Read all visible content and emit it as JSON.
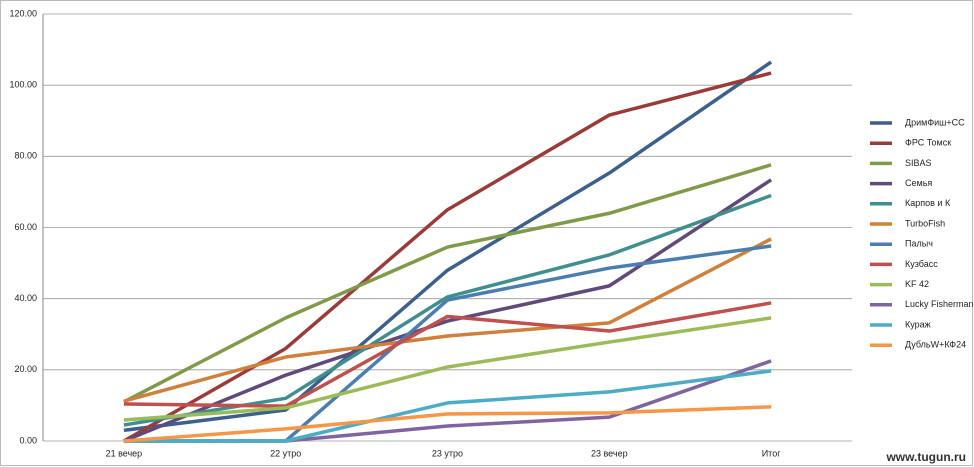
{
  "chart_data": {
    "type": "line",
    "categories": [
      "21 вечер",
      "22 утро",
      "23 утро",
      "23 вечер",
      "Итог"
    ],
    "ylim": [
      0,
      120
    ],
    "yticks": [
      {
        "value": 0,
        "label": "0.00"
      },
      {
        "value": 20,
        "label": "20.00"
      },
      {
        "value": 40,
        "label": "40.00"
      },
      {
        "value": 60,
        "label": "60.00"
      },
      {
        "value": 80,
        "label": "80.00"
      },
      {
        "value": 100,
        "label": "100.00"
      },
      {
        "value": 120,
        "label": "120.00"
      }
    ],
    "grid": true,
    "legend": "right",
    "watermark": "www.tugun.ru",
    "series": [
      {
        "name": "ДримФиш+СС",
        "color": "#3c5f8e",
        "values": [
          3,
          8.7,
          48,
          75.3,
          106.5
        ]
      },
      {
        "name": "ФРС Томск",
        "color": "#9b3b38",
        "values": [
          0,
          26,
          65,
          91.6,
          103.4
        ]
      },
      {
        "name": "SIBAS",
        "color": "#7f9a48",
        "values": [
          11,
          34.6,
          54.5,
          64,
          77.6
        ]
      },
      {
        "name": "Семья",
        "color": "#5f4a7b",
        "values": [
          0,
          18.5,
          33.7,
          43.6,
          73.4
        ]
      },
      {
        "name": "Карпов и К",
        "color": "#3f8f8f",
        "values": [
          4.5,
          12,
          40.5,
          52.3,
          69
        ]
      },
      {
        "name": "TurboFish",
        "color": "#d0803a",
        "values": [
          11.2,
          23.6,
          29.5,
          33.2,
          56.8
        ]
      },
      {
        "name": "Палыч",
        "color": "#4a7eb0",
        "values": [
          0,
          0,
          39.6,
          48.6,
          54.8
        ]
      },
      {
        "name": "Кузбасс",
        "color": "#c0504d",
        "values": [
          10.4,
          9.8,
          35,
          30.9,
          38.8
        ]
      },
      {
        "name": "KF 42",
        "color": "#9bbb59",
        "values": [
          5.9,
          9.3,
          20.8,
          27.8,
          34.6
        ]
      },
      {
        "name": "Lucky Fisherman",
        "color": "#8064a2",
        "values": [
          0,
          0,
          4.2,
          6.7,
          22.5
        ]
      },
      {
        "name": "Кураж",
        "color": "#4bacc6",
        "values": [
          0,
          0,
          10.7,
          13.8,
          19.7
        ]
      },
      {
        "name": "ДубльW+КФ24",
        "color": "#f79646",
        "values": [
          0,
          3.4,
          7.6,
          7.9,
          9.6
        ]
      }
    ]
  }
}
